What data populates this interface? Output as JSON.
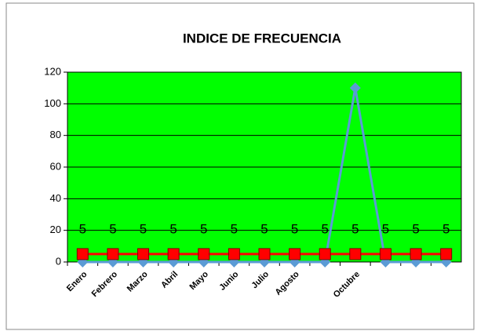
{
  "chart_data": {
    "type": "line",
    "title": "INDICE DE FRECUENCIA",
    "categories": [
      "Enero",
      "Febrero",
      "Marzo",
      "Abril",
      "Mayo",
      "Junio",
      "Julio",
      "Agosto",
      null,
      "Octubre",
      null,
      null,
      null
    ],
    "series": [
      {
        "color": "#5b9bd5",
        "marker": "diamond",
        "values": [
          0,
          0,
          0,
          0,
          0,
          0,
          0,
          0,
          0,
          110,
          0,
          0,
          0
        ]
      },
      {
        "color": "#ff0000",
        "marker": "square",
        "values": [
          5,
          5,
          5,
          5,
          5,
          5,
          5,
          5,
          5,
          5,
          5,
          5,
          5
        ],
        "show_labels": true
      }
    ],
    "ylim": [
      0,
      120
    ],
    "yticks": [
      0,
      20,
      40,
      60,
      80,
      100,
      120
    ],
    "grid": true,
    "plot_background": "#00ff00"
  }
}
